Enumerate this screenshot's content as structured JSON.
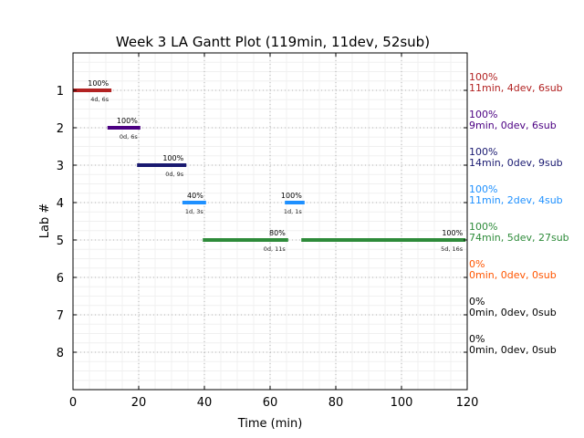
{
  "chart_data": {
    "type": "gantt",
    "title": "Week 3 LA Gantt Plot (119min, 11dev, 52sub)",
    "xlabel": "Time (min)",
    "ylabel": "Lab #",
    "xlim": [
      0,
      120
    ],
    "ylim": [
      9,
      0
    ],
    "xticks": [
      "0",
      "20",
      "40",
      "60",
      "80",
      "100",
      "120"
    ],
    "yticks": [
      "1",
      "2",
      "3",
      "4",
      "5",
      "6",
      "7",
      "8"
    ],
    "grid": true,
    "labs": [
      {
        "lab": 1,
        "color": "#b22222",
        "summary_pct": "100%",
        "summary": "11min, 4dev, 6sub",
        "segments": [
          {
            "start": 0,
            "end": 11.7,
            "pct": "100%",
            "detail": "4d, 6s"
          }
        ]
      },
      {
        "lab": 2,
        "color": "#4b0082",
        "summary_pct": "100%",
        "summary": "9min, 0dev, 6sub",
        "segments": [
          {
            "start": 10.5,
            "end": 20.5,
            "pct": "100%",
            "detail": "0d, 6s"
          }
        ]
      },
      {
        "lab": 3,
        "color": "#191970",
        "summary_pct": "100%",
        "summary": "14min, 0dev, 9sub",
        "segments": [
          {
            "start": 19.5,
            "end": 34.5,
            "pct": "100%",
            "detail": "0d, 9s"
          }
        ]
      },
      {
        "lab": 4,
        "color": "#1e90ff",
        "summary_pct": "100%",
        "summary": "11min, 2dev, 4sub",
        "segments": [
          {
            "start": 33.3,
            "end": 40.5,
            "pct": "40%",
            "detail": "1d, 3s"
          },
          {
            "start": 64.5,
            "end": 70.5,
            "pct": "100%",
            "detail": "1d, 1s"
          }
        ]
      },
      {
        "lab": 5,
        "color": "#2e8b3a",
        "summary_pct": "100%",
        "summary": "74min, 5dev, 27sub",
        "segments": [
          {
            "start": 39.5,
            "end": 65.5,
            "pct": "80%",
            "detail": "0d, 11s"
          },
          {
            "start": 69.5,
            "end": 119.5,
            "pct": "100%",
            "detail": "5d, 16s"
          }
        ]
      },
      {
        "lab": 6,
        "color": "#ff5500",
        "summary_pct": "0%",
        "summary": "0min, 0dev, 0sub",
        "segments": []
      },
      {
        "lab": 7,
        "color": "#000000",
        "summary_pct": "0%",
        "summary": "0min, 0dev, 0sub",
        "segments": []
      },
      {
        "lab": 8,
        "color": "#000000",
        "summary_pct": "0%",
        "summary": "0min, 0dev, 0sub",
        "segments": []
      }
    ]
  }
}
